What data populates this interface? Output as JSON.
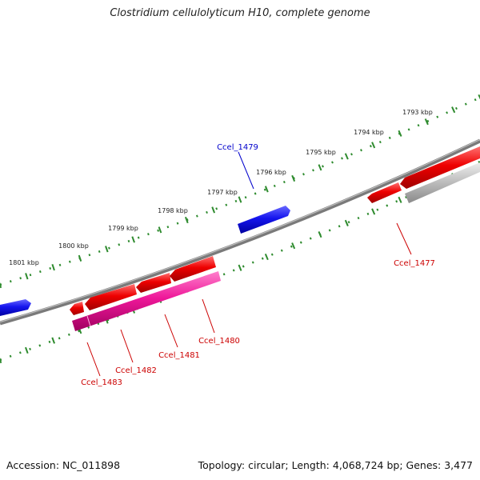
{
  "title": "Clostridium cellulolyticum H10, complete genome",
  "accession": "Accession: NC_011898",
  "topology": "Topology: circular; Length: 4,068,724 bp; Genes: 3,477",
  "colors": {
    "forward_gene": "#1010e0",
    "reverse_gene": "#e01010",
    "rna_gene": "#e0169a",
    "pseudo_gene": "#b8b8b8",
    "backbone": "#7a7a7a",
    "ticks": "#2e8b2e",
    "forward_label": "#0000cc",
    "reverse_label": "#cc0000"
  },
  "ticks": [
    {
      "label": "1793 kbp"
    },
    {
      "label": "1794 kbp"
    },
    {
      "label": "1795 kbp"
    },
    {
      "label": "1796 kbp"
    },
    {
      "label": "1797 kbp"
    },
    {
      "label": "1798 kbp"
    },
    {
      "label": "1799 kbp"
    },
    {
      "label": "1800 kbp"
    },
    {
      "label": "1801 kbp"
    }
  ],
  "genes": [
    {
      "name": "Ccel_1479",
      "strand": "forward"
    },
    {
      "name": "Ccel_1477",
      "strand": "reverse"
    },
    {
      "name": "Ccel_1480",
      "strand": "reverse"
    },
    {
      "name": "Ccel_1481",
      "strand": "reverse"
    },
    {
      "name": "Ccel_1482",
      "strand": "reverse"
    },
    {
      "name": "Ccel_1483",
      "strand": "reverse"
    }
  ]
}
